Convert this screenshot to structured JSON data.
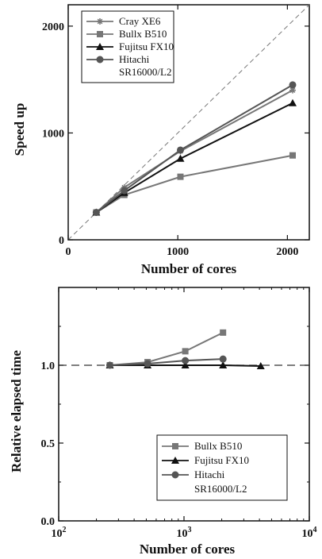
{
  "chart_data": [
    {
      "type": "line",
      "xlabel": "Number of cores",
      "ylabel": "Speed up",
      "xlim": [
        0,
        2200
      ],
      "ylim": [
        0,
        2200
      ],
      "xticks": [
        0,
        1000,
        2000
      ],
      "yticks": [
        0,
        1000,
        2000
      ],
      "ideal_line": true,
      "legend_position": "top-left",
      "series": [
        {
          "name": "Cray XE6",
          "marker": "star",
          "color": "#777777",
          "x": [
            256,
            512,
            1024,
            2048
          ],
          "y": [
            256,
            490,
            830,
            1400
          ]
        },
        {
          "name": "Bullx B510",
          "marker": "square",
          "color": "#777777",
          "x": [
            256,
            512,
            1024,
            2048
          ],
          "y": [
            256,
            420,
            590,
            790
          ]
        },
        {
          "name": "Fujitsu FX10",
          "marker": "triangle",
          "color": "#111111",
          "x": [
            256,
            512,
            1024,
            2048
          ],
          "y": [
            256,
            440,
            760,
            1280
          ]
        },
        {
          "name": "Hitachi SR16000/L2",
          "marker": "circle",
          "color": "#555555",
          "x": [
            256,
            512,
            1024,
            2048
          ],
          "y": [
            256,
            460,
            840,
            1450
          ]
        }
      ]
    },
    {
      "type": "line",
      "xlabel": "Number of cores",
      "ylabel": "Relative elapsed time",
      "xscale": "log",
      "xlim": [
        100,
        10000
      ],
      "ylim": [
        0,
        1.5
      ],
      "xticks": [
        "10^2",
        "10^3",
        "10^4"
      ],
      "yticks": [
        "0.0",
        "0.5",
        "1.0"
      ],
      "reference_line": 1.0,
      "legend_position": "bottom-right",
      "series": [
        {
          "name": "Bullx B510",
          "marker": "square",
          "color": "#777777",
          "x": [
            256,
            512,
            1024,
            2048
          ],
          "y": [
            1.0,
            1.02,
            1.09,
            1.21
          ]
        },
        {
          "name": "Fujitsu FX10",
          "marker": "triangle",
          "color": "#111111",
          "x": [
            256,
            512,
            1024,
            2048,
            4096
          ],
          "y": [
            1.0,
            1.0,
            1.0,
            1.0,
            0.995
          ]
        },
        {
          "name": "Hitachi SR16000/L2",
          "marker": "circle",
          "color": "#555555",
          "x": [
            256,
            512,
            1024,
            2048
          ],
          "y": [
            1.0,
            1.01,
            1.03,
            1.04
          ]
        }
      ]
    }
  ]
}
